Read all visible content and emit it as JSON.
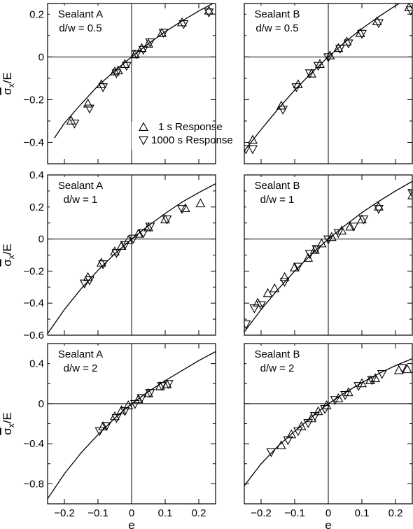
{
  "legend": {
    "up_label": "1 s Response",
    "down_label": "1000 s Response"
  },
  "chart_data": [
    {
      "type": "scatter",
      "row": 0,
      "col": 0,
      "annotation": [
        "Sealant A",
        "d/w = 0.5"
      ],
      "xlabel": "",
      "ylabel": "σx/E",
      "xlim": [
        -0.25,
        0.25
      ],
      "ylim": [
        -0.5,
        0.25
      ],
      "yticks": [
        0.2,
        0,
        -0.2,
        -0.4
      ],
      "xticks": [],
      "has_legend": true,
      "fit_curve": [
        [
          -0.23,
          -0.38
        ],
        [
          -0.2,
          -0.31
        ],
        [
          -0.15,
          -0.22
        ],
        [
          -0.1,
          -0.135
        ],
        [
          -0.05,
          -0.065
        ],
        [
          0,
          0
        ],
        [
          0.05,
          0.062
        ],
        [
          0.1,
          0.118
        ],
        [
          0.15,
          0.168
        ],
        [
          0.2,
          0.215
        ],
        [
          0.25,
          0.257
        ]
      ],
      "series": [
        {
          "name": "1 s Response",
          "marker": "triangle-up",
          "points": [
            [
              -0.18,
              -0.3
            ],
            [
              -0.13,
              -0.22
            ],
            [
              -0.09,
              -0.13
            ],
            [
              -0.05,
              -0.07
            ],
            [
              -0.04,
              -0.065
            ],
            [
              -0.02,
              -0.035
            ],
            [
              0.01,
              0.01
            ],
            [
              0.03,
              0.04
            ],
            [
              0.05,
              0.06
            ],
            [
              0.09,
              0.11
            ],
            [
              0.15,
              0.16
            ],
            [
              0.23,
              0.215
            ]
          ]
        },
        {
          "name": "1000 s Response",
          "marker": "triangle-down",
          "points": [
            [
              -0.17,
              -0.31
            ],
            [
              -0.125,
              -0.24
            ],
            [
              -0.085,
              -0.14
            ],
            [
              -0.045,
              -0.075
            ],
            [
              -0.015,
              -0.04
            ],
            [
              0.015,
              0.015
            ],
            [
              0.035,
              0.035
            ],
            [
              0.055,
              0.07
            ],
            [
              0.095,
              0.115
            ],
            [
              0.155,
              0.155
            ],
            [
              0.23,
              0.21
            ]
          ]
        }
      ]
    },
    {
      "type": "scatter",
      "row": 0,
      "col": 1,
      "annotation": [
        "Sealant B",
        "d/w = 0.5"
      ],
      "xlabel": "",
      "ylabel": "",
      "xlim": [
        -0.25,
        0.25
      ],
      "ylim": [
        -0.5,
        0.25
      ],
      "yticks": [
        0.2,
        0,
        -0.2,
        -0.4
      ],
      "xticks": [],
      "has_legend": false,
      "fit_curve": [
        [
          -0.25,
          -0.44
        ],
        [
          -0.2,
          -0.34
        ],
        [
          -0.15,
          -0.245
        ],
        [
          -0.1,
          -0.155
        ],
        [
          -0.05,
          -0.075
        ],
        [
          0,
          0
        ],
        [
          0.05,
          0.07
        ],
        [
          0.1,
          0.132
        ],
        [
          0.15,
          0.188
        ],
        [
          0.2,
          0.24
        ],
        [
          0.25,
          0.285
        ]
      ],
      "series": [
        {
          "name": "1 s Response",
          "marker": "triangle-up",
          "points": [
            [
              -0.225,
              -0.39
            ],
            [
              -0.14,
              -0.23
            ],
            [
              -0.09,
              -0.13
            ],
            [
              -0.05,
              -0.08
            ],
            [
              -0.025,
              -0.035
            ],
            [
              0.005,
              0.005
            ],
            [
              0.03,
              0.04
            ],
            [
              0.055,
              0.07
            ],
            [
              0.095,
              0.11
            ],
            [
              0.145,
              0.165
            ],
            [
              0.24,
              0.23
            ]
          ]
        },
        {
          "name": "1000 s Response",
          "marker": "triangle-down",
          "points": [
            [
              -0.245,
              -0.43
            ],
            [
              -0.225,
              -0.43
            ],
            [
              -0.135,
              -0.245
            ],
            [
              -0.095,
              -0.14
            ],
            [
              -0.055,
              -0.075
            ],
            [
              -0.03,
              -0.04
            ],
            [
              0.0,
              0.0
            ],
            [
              0.035,
              0.04
            ],
            [
              0.06,
              0.065
            ],
            [
              0.1,
              0.11
            ],
            [
              0.15,
              0.16
            ],
            [
              0.245,
              0.22
            ]
          ]
        }
      ]
    },
    {
      "type": "scatter",
      "row": 1,
      "col": 0,
      "annotation": [
        "Sealant A",
        "d/w = 1"
      ],
      "xlabel": "",
      "ylabel": "σx/E",
      "xlim": [
        -0.25,
        0.25
      ],
      "ylim": [
        -0.6,
        0.4
      ],
      "yticks": [
        0.4,
        0.2,
        0,
        -0.2,
        -0.4,
        -0.6
      ],
      "xticks": [],
      "has_legend": false,
      "fit_curve": [
        [
          -0.25,
          -0.59
        ],
        [
          -0.2,
          -0.44
        ],
        [
          -0.15,
          -0.31
        ],
        [
          -0.1,
          -0.195
        ],
        [
          -0.05,
          -0.092
        ],
        [
          0,
          0
        ],
        [
          0.05,
          0.083
        ],
        [
          0.1,
          0.16
        ],
        [
          0.15,
          0.23
        ],
        [
          0.2,
          0.29
        ],
        [
          0.25,
          0.345
        ]
      ],
      "series": [
        {
          "name": "1 s Response",
          "marker": "triangle-up",
          "points": [
            [
              -0.13,
              -0.24
            ],
            [
              -0.09,
              -0.15
            ],
            [
              -0.05,
              -0.08
            ],
            [
              -0.03,
              -0.045
            ],
            [
              -0.01,
              -0.01
            ],
            [
              0.02,
              0.03
            ],
            [
              0.05,
              0.07
            ],
            [
              0.1,
              0.12
            ],
            [
              0.16,
              0.19
            ],
            [
              0.205,
              0.22
            ]
          ]
        },
        {
          "name": "1000 s Response",
          "marker": "triangle-down",
          "points": [
            [
              -0.14,
              -0.275
            ],
            [
              -0.125,
              -0.255
            ],
            [
              -0.085,
              -0.155
            ],
            [
              -0.045,
              -0.085
            ],
            [
              -0.02,
              -0.035
            ],
            [
              0.005,
              0.005
            ],
            [
              0.035,
              0.04
            ],
            [
              0.055,
              0.08
            ],
            [
              0.105,
              0.125
            ],
            [
              0.15,
              0.19
            ]
          ]
        }
      ]
    },
    {
      "type": "scatter",
      "row": 1,
      "col": 1,
      "annotation": [
        "Sealant B",
        "d/w = 1"
      ],
      "xlabel": "",
      "ylabel": "",
      "xlim": [
        -0.25,
        0.25
      ],
      "ylim": [
        -0.6,
        0.4
      ],
      "yticks": [
        0.4,
        0.2,
        0,
        -0.2,
        -0.4,
        -0.6
      ],
      "xticks": [],
      "has_legend": false,
      "fit_curve": [
        [
          -0.25,
          -0.58
        ],
        [
          -0.2,
          -0.44
        ],
        [
          -0.15,
          -0.315
        ],
        [
          -0.1,
          -0.2
        ],
        [
          -0.05,
          -0.095
        ],
        [
          0,
          0
        ],
        [
          0.05,
          0.085
        ],
        [
          0.1,
          0.165
        ],
        [
          0.15,
          0.235
        ],
        [
          0.2,
          0.3
        ],
        [
          0.25,
          0.36
        ]
      ],
      "series": [
        {
          "name": "1 s Response",
          "marker": "triangle-up",
          "points": [
            [
              -0.21,
              -0.4
            ],
            [
              -0.18,
              -0.34
            ],
            [
              -0.16,
              -0.31
            ],
            [
              -0.13,
              -0.24
            ],
            [
              -0.1,
              -0.18
            ],
            [
              -0.06,
              -0.12
            ],
            [
              -0.04,
              -0.07
            ],
            [
              -0.02,
              -0.03
            ],
            [
              0.01,
              0.01
            ],
            [
              0.04,
              0.05
            ],
            [
              0.065,
              0.075
            ],
            [
              0.1,
              0.12
            ],
            [
              0.15,
              0.2
            ],
            [
              0.25,
              0.27
            ]
          ]
        },
        {
          "name": "1000 s Response",
          "marker": "triangle-down",
          "points": [
            [
              -0.245,
              -0.53
            ],
            [
              -0.22,
              -0.43
            ],
            [
              -0.2,
              -0.41
            ],
            [
              -0.13,
              -0.265
            ],
            [
              -0.09,
              -0.17
            ],
            [
              -0.055,
              -0.09
            ],
            [
              -0.035,
              -0.06
            ],
            [
              0.0,
              0.0
            ],
            [
              0.03,
              0.04
            ],
            [
              0.075,
              0.08
            ],
            [
              0.105,
              0.125
            ],
            [
              0.15,
              0.19
            ],
            [
              0.25,
              0.29
            ]
          ]
        }
      ]
    },
    {
      "type": "scatter",
      "row": 2,
      "col": 0,
      "annotation": [
        "Sealant A",
        "d/w = 2"
      ],
      "xlabel": "e",
      "ylabel": "σx/E",
      "xlim": [
        -0.25,
        0.25
      ],
      "ylim": [
        -1.0,
        0.6
      ],
      "yticks": [
        0.4,
        0,
        -0.4,
        -0.8
      ],
      "xticks": [
        -0.2,
        -0.1,
        0,
        0.1,
        0.2
      ],
      "has_legend": false,
      "fit_curve": [
        [
          -0.25,
          -0.95
        ],
        [
          -0.2,
          -0.7
        ],
        [
          -0.15,
          -0.49
        ],
        [
          -0.1,
          -0.31
        ],
        [
          -0.05,
          -0.145
        ],
        [
          0,
          0
        ],
        [
          0.05,
          0.12
        ],
        [
          0.1,
          0.23
        ],
        [
          0.15,
          0.33
        ],
        [
          0.2,
          0.43
        ],
        [
          0.25,
          0.52
        ]
      ],
      "series": [
        {
          "name": "1 s Response",
          "marker": "triangle-up",
          "points": [
            [
              -0.085,
              -0.23
            ],
            [
              -0.05,
              -0.13
            ],
            [
              -0.03,
              -0.07
            ],
            [
              -0.01,
              -0.02
            ],
            [
              0.02,
              0.04
            ],
            [
              0.05,
              0.1
            ],
            [
              0.085,
              0.17
            ],
            [
              0.105,
              0.19
            ]
          ]
        },
        {
          "name": "1000 s Response",
          "marker": "triangle-down",
          "points": [
            [
              -0.095,
              -0.27
            ],
            [
              -0.075,
              -0.22
            ],
            [
              -0.045,
              -0.14
            ],
            [
              -0.02,
              -0.07
            ],
            [
              0.01,
              0.0
            ],
            [
              0.03,
              0.06
            ],
            [
              0.055,
              0.11
            ],
            [
              0.09,
              0.18
            ],
            [
              0.11,
              0.2
            ]
          ]
        }
      ]
    },
    {
      "type": "scatter",
      "row": 2,
      "col": 1,
      "annotation": [
        "Sealant B",
        "d/w = 2"
      ],
      "xlabel": "e",
      "ylabel": "",
      "xlim": [
        -0.25,
        0.25
      ],
      "ylim": [
        -1.0,
        0.6
      ],
      "yticks": [
        0.4,
        0,
        -0.4,
        -0.8
      ],
      "xticks": [
        -0.2,
        -0.1,
        0,
        0.1,
        0.2
      ],
      "has_legend": false,
      "fit_curve": [
        [
          -0.25,
          -0.82
        ],
        [
          -0.2,
          -0.6
        ],
        [
          -0.15,
          -0.425
        ],
        [
          -0.1,
          -0.275
        ],
        [
          -0.05,
          -0.135
        ],
        [
          0,
          0
        ],
        [
          0.05,
          0.11
        ],
        [
          0.1,
          0.21
        ],
        [
          0.15,
          0.3
        ],
        [
          0.2,
          0.38
        ],
        [
          0.25,
          0.45
        ]
      ],
      "series": [
        {
          "name": "1 s Response",
          "marker": "triangle-up",
          "points": [
            [
              -0.14,
              -0.42
            ],
            [
              -0.11,
              -0.31
            ],
            [
              -0.08,
              -0.23
            ],
            [
              -0.05,
              -0.15
            ],
            [
              -0.03,
              -0.08
            ],
            [
              -0.005,
              -0.02
            ],
            [
              0.03,
              0.05
            ],
            [
              0.06,
              0.11
            ],
            [
              0.1,
              0.2
            ],
            [
              0.125,
              0.23
            ],
            [
              0.14,
              0.25
            ],
            [
              0.21,
              0.33
            ],
            [
              0.235,
              0.34
            ]
          ]
        },
        {
          "name": "1000 s Response",
          "marker": "triangle-down",
          "points": [
            [
              -0.17,
              -0.48
            ],
            [
              -0.12,
              -0.36
            ],
            [
              -0.09,
              -0.27
            ],
            [
              -0.06,
              -0.19
            ],
            [
              -0.04,
              -0.12
            ],
            [
              -0.01,
              -0.05
            ],
            [
              0.02,
              0.04
            ],
            [
              0.05,
              0.09
            ],
            [
              0.09,
              0.18
            ],
            [
              0.13,
              0.24
            ],
            [
              0.16,
              0.3
            ],
            [
              0.22,
              0.36
            ]
          ]
        }
      ]
    }
  ]
}
